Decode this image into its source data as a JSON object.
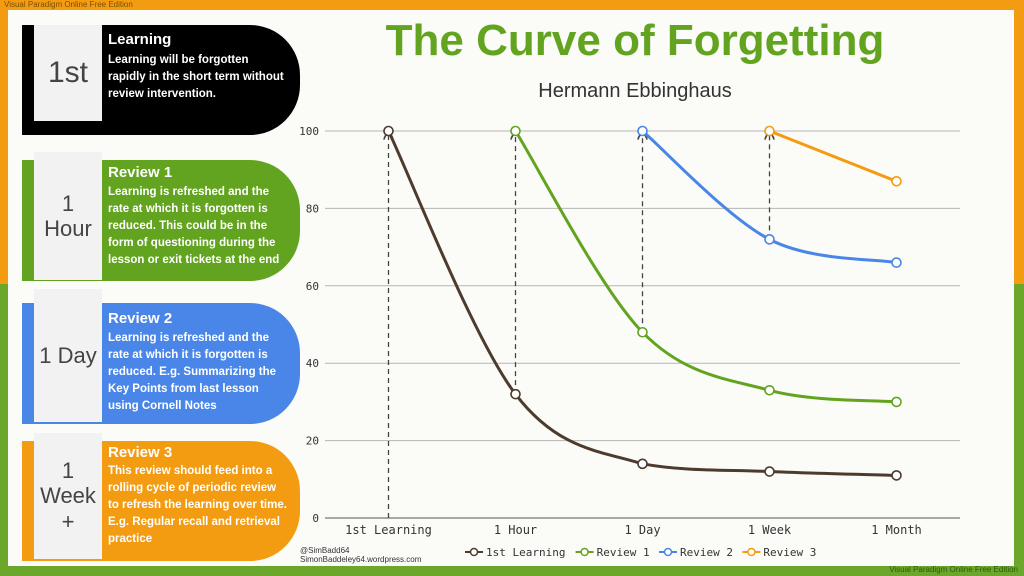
{
  "watermark": "Visual Paradigm Online Free Edition",
  "title": "The Curve of Forgetting",
  "subtitle": "Hermann Ebbinghaus",
  "cards": [
    {
      "badge": "1st",
      "title": "Learning",
      "text": "Learning will be forgotten rapidly in the short term without review intervention."
    },
    {
      "badge": "1\nHour",
      "title": "Review 1",
      "text": "Learning is refreshed and the rate at which it is forgotten is reduced. This could be in the form of questioning during the lesson or exit tickets at the end"
    },
    {
      "badge": "1 Day",
      "title": "Review 2",
      "text": "Learning is refreshed and the rate at which it is forgotten is reduced.  E.g. Summarizing the Key Points from last lesson using Cornell Notes"
    },
    {
      "badge": "1\nWeek\n+",
      "title": "Review 3",
      "text": "This review should feed into a rolling cycle of periodic review to refresh the learning over time.  E.g. Regular recall and retrieval practice"
    }
  ],
  "credit": {
    "line1": "@SimBadd64",
    "line2": "SimonBaddeley64.wordpress.com"
  },
  "colors": {
    "learning": "#4d3b2e",
    "review1": "#62a420",
    "review2": "#4a86e8",
    "review3": "#f39c12"
  },
  "chart_data": {
    "type": "line",
    "categories": [
      "1st Learning",
      "1 Hour",
      "1 Day",
      "1 Week",
      "1 Month"
    ],
    "ylim": [
      0,
      100
    ],
    "yticks": [
      0,
      20,
      40,
      60,
      80,
      100
    ],
    "grid": true,
    "legend_position": "bottom",
    "series": [
      {
        "name": "1st Learning",
        "x": [
          0,
          1,
          2,
          3,
          4
        ],
        "values": [
          100,
          32,
          14,
          12,
          11
        ]
      },
      {
        "name": "Review 1",
        "x": [
          1,
          2,
          3,
          4
        ],
        "values": [
          100,
          48,
          33,
          30
        ]
      },
      {
        "name": "Review 2",
        "x": [
          2,
          3,
          4
        ],
        "values": [
          100,
          72,
          66
        ]
      },
      {
        "name": "Review 3",
        "x": [
          3,
          4
        ],
        "values": [
          100,
          87
        ]
      }
    ],
    "review_arrows": [
      {
        "x": 0,
        "from": 0,
        "to": 100
      },
      {
        "x": 1,
        "from": 32,
        "to": 100
      },
      {
        "x": 2,
        "from": 48,
        "to": 100
      },
      {
        "x": 3,
        "from": 72,
        "to": 100
      }
    ]
  }
}
